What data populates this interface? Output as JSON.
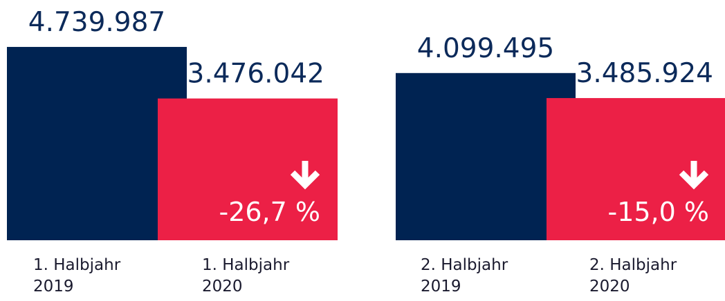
{
  "chart_data": {
    "type": "bar",
    "categories": [
      "1. Halbjahr 2019",
      "1. Halbjahr 2020",
      "2. Halbjahr 2019",
      "2. Halbjahr 2020"
    ],
    "values": [
      4739987,
      3476042,
      4099495,
      3485924
    ],
    "value_labels": [
      "4.739.987",
      "3.476.042",
      "4.099.495",
      "3.485.924"
    ],
    "colors": [
      "#002352",
      "#ec2046",
      "#002352",
      "#ec2046"
    ],
    "changes": [
      -26.7,
      -15.0
    ],
    "change_labels": [
      "-26,7 %",
      "-15,0 %"
    ],
    "ylim": [
      0,
      5000000
    ]
  }
}
